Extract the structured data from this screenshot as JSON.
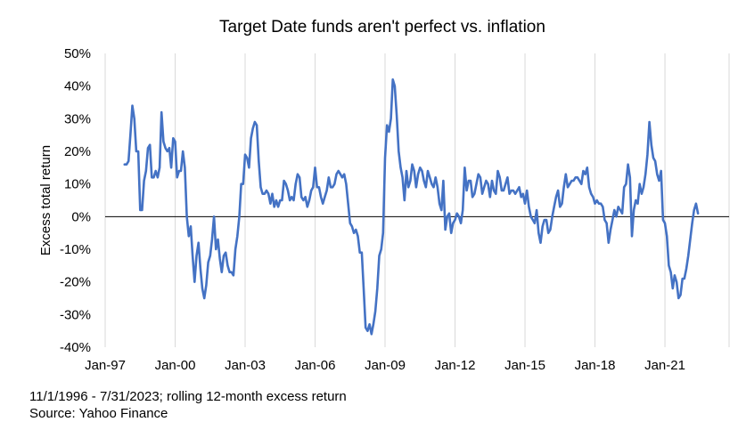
{
  "chart_data": {
    "type": "line",
    "title": "Target Date funds aren't perfect vs. inflation",
    "ylabel": "Excess total return",
    "xlabel": "",
    "x_ticks": [
      "Jan-97",
      "Jan-00",
      "Jan-03",
      "Jan-06",
      "Jan-09",
      "Jan-12",
      "Jan-15",
      "Jan-18",
      "Jan-21"
    ],
    "y_ticks": [
      "-40%",
      "-30%",
      "-20%",
      "-10%",
      "0%",
      "10%",
      "20%",
      "30%",
      "40%",
      "50%"
    ],
    "ylim": [
      -40,
      50
    ],
    "x_range": [
      "1997-01",
      "2023-10"
    ],
    "grid": "vertical",
    "color": "#4472c4",
    "series": [
      {
        "points": [
          [
            "1997-11",
            16
          ],
          [
            "1997-12",
            16
          ],
          [
            "1998-01",
            17
          ],
          [
            "1998-02",
            25
          ],
          [
            "1998-03",
            34
          ],
          [
            "1998-04",
            30
          ],
          [
            "1998-05",
            20
          ],
          [
            "1998-06",
            20
          ],
          [
            "1998-07",
            2
          ],
          [
            "1998-08",
            2
          ],
          [
            "1998-09",
            11
          ],
          [
            "1998-10",
            14
          ],
          [
            "1998-11",
            21
          ],
          [
            "1998-12",
            22
          ],
          [
            "1999-01",
            12
          ],
          [
            "1999-02",
            12
          ],
          [
            "1999-03",
            14
          ],
          [
            "1999-04",
            12
          ],
          [
            "1999-05",
            15
          ],
          [
            "1999-06",
            32
          ],
          [
            "1999-07",
            23
          ],
          [
            "1999-08",
            21
          ],
          [
            "1999-09",
            20
          ],
          [
            "1999-10",
            21
          ],
          [
            "1999-11",
            15
          ],
          [
            "1999-12",
            24
          ],
          [
            "2000-01",
            23
          ],
          [
            "2000-02",
            12
          ],
          [
            "2000-03",
            14
          ],
          [
            "2000-04",
            14
          ],
          [
            "2000-05",
            20
          ],
          [
            "2000-06",
            15
          ],
          [
            "2000-07",
            0
          ],
          [
            "2000-08",
            -6
          ],
          [
            "2000-09",
            -3
          ],
          [
            "2000-10",
            -12
          ],
          [
            "2000-11",
            -20
          ],
          [
            "2000-12",
            -12
          ],
          [
            "2001-01",
            -8
          ],
          [
            "2001-02",
            -16
          ],
          [
            "2001-03",
            -22
          ],
          [
            "2001-04",
            -25
          ],
          [
            "2001-05",
            -21
          ],
          [
            "2001-06",
            -14
          ],
          [
            "2001-07",
            -12
          ],
          [
            "2001-08",
            -7
          ],
          [
            "2001-09",
            0
          ],
          [
            "2001-10",
            -10
          ],
          [
            "2001-11",
            -7
          ],
          [
            "2001-12",
            -13
          ],
          [
            "2002-01",
            -17
          ],
          [
            "2002-02",
            -12
          ],
          [
            "2002-03",
            -11
          ],
          [
            "2002-04",
            -15
          ],
          [
            "2002-05",
            -17
          ],
          [
            "2002-06",
            -17
          ],
          [
            "2002-07",
            -18
          ],
          [
            "2002-08",
            -10
          ],
          [
            "2002-09",
            -6
          ],
          [
            "2002-10",
            0
          ],
          [
            "2002-11",
            10
          ],
          [
            "2002-12",
            10
          ],
          [
            "2003-01",
            19
          ],
          [
            "2003-02",
            18
          ],
          [
            "2003-03",
            15
          ],
          [
            "2003-04",
            24
          ],
          [
            "2003-05",
            27
          ],
          [
            "2003-06",
            29
          ],
          [
            "2003-07",
            28
          ],
          [
            "2003-08",
            17
          ],
          [
            "2003-09",
            9
          ],
          [
            "2003-10",
            7
          ],
          [
            "2003-11",
            7
          ],
          [
            "2003-12",
            8
          ],
          [
            "2004-01",
            7
          ],
          [
            "2004-02",
            4
          ],
          [
            "2004-03",
            7
          ],
          [
            "2004-04",
            3
          ],
          [
            "2004-05",
            5
          ],
          [
            "2004-06",
            3
          ],
          [
            "2004-07",
            5
          ],
          [
            "2004-08",
            5
          ],
          [
            "2004-09",
            11
          ],
          [
            "2004-10",
            10
          ],
          [
            "2004-11",
            8
          ],
          [
            "2004-12",
            5
          ],
          [
            "2005-01",
            6
          ],
          [
            "2005-02",
            5
          ],
          [
            "2005-03",
            10
          ],
          [
            "2005-04",
            13
          ],
          [
            "2005-05",
            12
          ],
          [
            "2005-06",
            6
          ],
          [
            "2005-07",
            5
          ],
          [
            "2005-08",
            6
          ],
          [
            "2005-09",
            3
          ],
          [
            "2005-10",
            5
          ],
          [
            "2005-11",
            8
          ],
          [
            "2005-12",
            9
          ],
          [
            "2006-01",
            15
          ],
          [
            "2006-02",
            9
          ],
          [
            "2006-03",
            9
          ],
          [
            "2006-04",
            6
          ],
          [
            "2006-05",
            4
          ],
          [
            "2006-06",
            6
          ],
          [
            "2006-07",
            8
          ],
          [
            "2006-08",
            12
          ],
          [
            "2006-09",
            9
          ],
          [
            "2006-10",
            9
          ],
          [
            "2006-11",
            10
          ],
          [
            "2006-12",
            13
          ],
          [
            "2007-01",
            14
          ],
          [
            "2007-02",
            13
          ],
          [
            "2007-03",
            12
          ],
          [
            "2007-04",
            13
          ],
          [
            "2007-05",
            10
          ],
          [
            "2007-06",
            4
          ],
          [
            "2007-07",
            -2
          ],
          [
            "2007-08",
            -3
          ],
          [
            "2007-09",
            -5
          ],
          [
            "2007-10",
            -4
          ],
          [
            "2007-11",
            -6
          ],
          [
            "2007-12",
            -11
          ],
          [
            "2008-01",
            -11
          ],
          [
            "2008-02",
            -22
          ],
          [
            "2008-03",
            -34
          ],
          [
            "2008-04",
            -35
          ],
          [
            "2008-05",
            -33
          ],
          [
            "2008-06",
            -36
          ],
          [
            "2008-07",
            -33
          ],
          [
            "2008-08",
            -29
          ],
          [
            "2008-09",
            -22
          ],
          [
            "2008-10",
            -12
          ],
          [
            "2008-11",
            -10
          ],
          [
            "2008-12",
            -5
          ],
          [
            "2009-01",
            18
          ],
          [
            "2009-02",
            28
          ],
          [
            "2009-03",
            26
          ],
          [
            "2009-04",
            30
          ],
          [
            "2009-05",
            42
          ],
          [
            "2009-06",
            40
          ],
          [
            "2009-07",
            31
          ],
          [
            "2009-08",
            20
          ],
          [
            "2009-09",
            15
          ],
          [
            "2009-10",
            12
          ],
          [
            "2009-11",
            5
          ],
          [
            "2009-12",
            14
          ],
          [
            "2010-01",
            9
          ],
          [
            "2010-02",
            11
          ],
          [
            "2010-03",
            16
          ],
          [
            "2010-04",
            14
          ],
          [
            "2010-05",
            9
          ],
          [
            "2010-06",
            13
          ],
          [
            "2010-07",
            15
          ],
          [
            "2010-08",
            14
          ],
          [
            "2010-09",
            11
          ],
          [
            "2010-10",
            9
          ],
          [
            "2010-11",
            14
          ],
          [
            "2010-12",
            12
          ],
          [
            "2011-01",
            10
          ],
          [
            "2011-02",
            9
          ],
          [
            "2011-03",
            12
          ],
          [
            "2011-04",
            9
          ],
          [
            "2011-05",
            4
          ],
          [
            "2011-06",
            2
          ],
          [
            "2011-07",
            11
          ],
          [
            "2011-08",
            -4
          ],
          [
            "2011-09",
            0
          ],
          [
            "2011-10",
            1
          ],
          [
            "2011-11",
            -5
          ],
          [
            "2011-12",
            -2
          ],
          [
            "2012-01",
            -1
          ],
          [
            "2012-02",
            1
          ],
          [
            "2012-03",
            0
          ],
          [
            "2012-04",
            -2
          ],
          [
            "2012-05",
            2
          ],
          [
            "2012-06",
            15
          ],
          [
            "2012-07",
            8
          ],
          [
            "2012-08",
            11
          ],
          [
            "2012-09",
            11
          ],
          [
            "2012-10",
            6
          ],
          [
            "2012-11",
            7
          ],
          [
            "2012-12",
            10
          ],
          [
            "2013-01",
            13
          ],
          [
            "2013-02",
            12
          ],
          [
            "2013-03",
            7
          ],
          [
            "2013-04",
            9
          ],
          [
            "2013-05",
            11
          ],
          [
            "2013-06",
            10
          ],
          [
            "2013-07",
            6
          ],
          [
            "2013-08",
            11
          ],
          [
            "2013-09",
            8
          ],
          [
            "2013-10",
            7
          ],
          [
            "2013-11",
            14
          ],
          [
            "2013-12",
            12
          ],
          [
            "2014-01",
            8
          ],
          [
            "2014-02",
            8
          ],
          [
            "2014-03",
            10
          ],
          [
            "2014-04",
            12
          ],
          [
            "2014-05",
            7
          ],
          [
            "2014-06",
            8
          ],
          [
            "2014-07",
            8
          ],
          [
            "2014-08",
            7
          ],
          [
            "2014-09",
            8
          ],
          [
            "2014-10",
            9
          ],
          [
            "2014-11",
            6
          ],
          [
            "2014-12",
            7
          ],
          [
            "2015-01",
            4
          ],
          [
            "2015-02",
            8
          ],
          [
            "2015-03",
            3
          ],
          [
            "2015-04",
            0
          ],
          [
            "2015-05",
            -1
          ],
          [
            "2015-06",
            -2
          ],
          [
            "2015-07",
            2
          ],
          [
            "2015-08",
            -5
          ],
          [
            "2015-09",
            -8
          ],
          [
            "2015-10",
            -3
          ],
          [
            "2015-11",
            -1
          ],
          [
            "2015-12",
            -1
          ],
          [
            "2016-01",
            -5
          ],
          [
            "2016-02",
            -4
          ],
          [
            "2016-03",
            0
          ],
          [
            "2016-04",
            3
          ],
          [
            "2016-05",
            6
          ],
          [
            "2016-06",
            8
          ],
          [
            "2016-07",
            3
          ],
          [
            "2016-08",
            4
          ],
          [
            "2016-09",
            9
          ],
          [
            "2016-10",
            13
          ],
          [
            "2016-11",
            9
          ],
          [
            "2016-12",
            10
          ],
          [
            "2017-01",
            11
          ],
          [
            "2017-02",
            11
          ],
          [
            "2017-03",
            12
          ],
          [
            "2017-04",
            12
          ],
          [
            "2017-05",
            11
          ],
          [
            "2017-06",
            10
          ],
          [
            "2017-07",
            14
          ],
          [
            "2017-08",
            13
          ],
          [
            "2017-09",
            15
          ],
          [
            "2017-10",
            9
          ],
          [
            "2017-11",
            7
          ],
          [
            "2017-12",
            6
          ],
          [
            "2018-01",
            4
          ],
          [
            "2018-02",
            5
          ],
          [
            "2018-03",
            4
          ],
          [
            "2018-04",
            4
          ],
          [
            "2018-05",
            3
          ],
          [
            "2018-06",
            -1
          ],
          [
            "2018-07",
            -2
          ],
          [
            "2018-08",
            -8
          ],
          [
            "2018-09",
            -4
          ],
          [
            "2018-10",
            -1
          ],
          [
            "2018-11",
            2
          ],
          [
            "2018-12",
            0
          ],
          [
            "2019-01",
            3
          ],
          [
            "2019-02",
            2
          ],
          [
            "2019-03",
            1
          ],
          [
            "2019-04",
            9
          ],
          [
            "2019-05",
            10
          ],
          [
            "2019-06",
            16
          ],
          [
            "2019-07",
            12
          ],
          [
            "2019-08",
            -6
          ],
          [
            "2019-09",
            2
          ],
          [
            "2019-10",
            5
          ],
          [
            "2019-11",
            4
          ],
          [
            "2019-12",
            10
          ],
          [
            "2020-01",
            7
          ],
          [
            "2020-02",
            9
          ],
          [
            "2020-03",
            13
          ],
          [
            "2020-04",
            19
          ],
          [
            "2020-05",
            29
          ],
          [
            "2020-06",
            22
          ],
          [
            "2020-07",
            18
          ],
          [
            "2020-08",
            17
          ],
          [
            "2020-09",
            13
          ],
          [
            "2020-10",
            11
          ],
          [
            "2020-11",
            14
          ],
          [
            "2020-12",
            -1
          ],
          [
            "2021-01",
            -2
          ],
          [
            "2021-02",
            -6
          ],
          [
            "2021-03",
            -15
          ],
          [
            "2021-04",
            -17
          ],
          [
            "2021-05",
            -22
          ],
          [
            "2021-06",
            -18
          ],
          [
            "2021-07",
            -20
          ],
          [
            "2021-08",
            -25
          ],
          [
            "2021-09",
            -24
          ],
          [
            "2021-10",
            -19
          ],
          [
            "2021-11",
            -19
          ],
          [
            "2021-12",
            -16
          ],
          [
            "2022-01",
            -12
          ],
          [
            "2022-02",
            -7
          ],
          [
            "2022-03",
            -2
          ],
          [
            "2022-04",
            2
          ],
          [
            "2022-05",
            4
          ],
          [
            "2022-06",
            1
          ]
        ]
      }
    ],
    "footnotes": [
      "11/1/1996 - 7/31/2023; rolling 12-month excess return",
      "Source: Yahoo Finance"
    ]
  }
}
